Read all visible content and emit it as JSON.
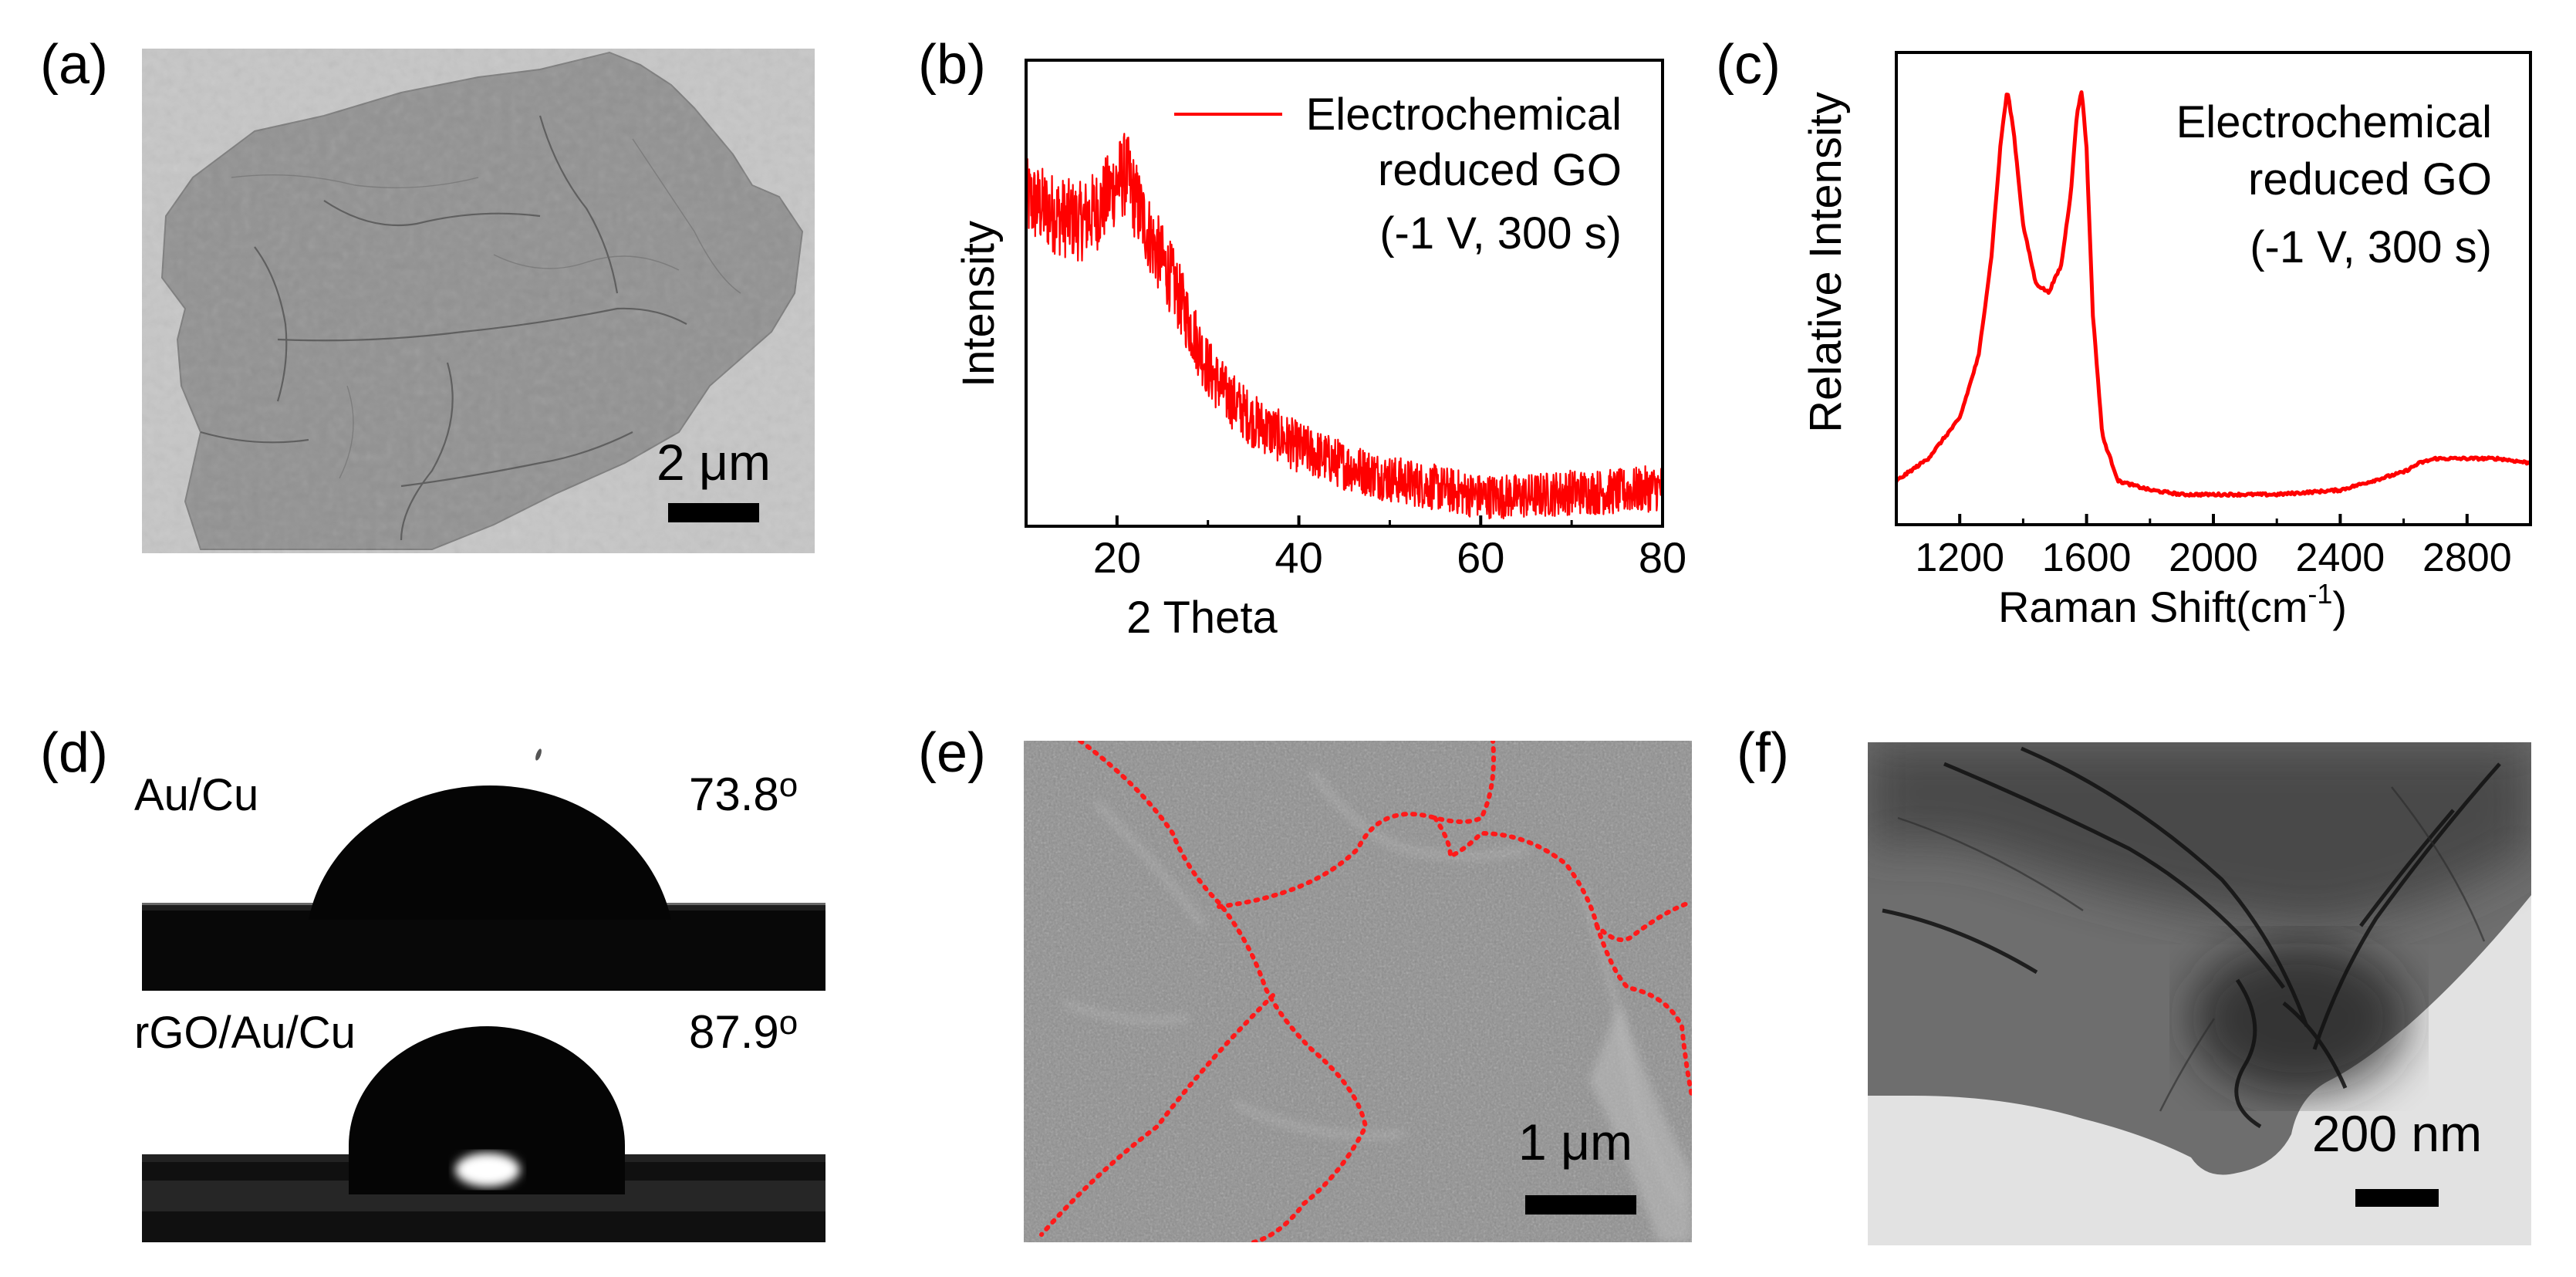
{
  "panel_labels": {
    "a": "(a)",
    "b": "(b)",
    "c": "(c)",
    "d": "(d)",
    "e": "(e)",
    "f": "(f)"
  },
  "panel_a": {
    "scale_bar": "2 μm"
  },
  "panel_b": {
    "legend_line1": "Electrochemical",
    "legend_line2": "reduced GO",
    "legend_line3": "(-1 V, 300 s)"
  },
  "panel_c": {
    "annot_line1": "Electrochemical",
    "annot_line2": "reduced GO",
    "annot_line3": "(-1 V, 300 s)"
  },
  "panel_d": {
    "top_label": "Au/Cu",
    "top_angle": "73.8",
    "bottom_label": "rGO/Au/Cu",
    "bottom_angle": "87.9",
    "degree_symbol": "o"
  },
  "panel_e": {
    "scale_bar": "1 μm"
  },
  "panel_f": {
    "scale_bar": "200 nm"
  },
  "colors": {
    "data": "#ff0000",
    "axis": "#000000"
  },
  "chart_data": [
    {
      "type": "line",
      "id": "b",
      "title": "",
      "xlabel": "2 Theta",
      "ylabel": "Intensity",
      "xlim": [
        10,
        80
      ],
      "xticks": [
        20,
        40,
        60,
        80
      ],
      "yticks_shown": false,
      "series": [
        {
          "name": "Electrochemical reduced GO (-1 V, 300 s)",
          "x": [
            10,
            12,
            14,
            16,
            18,
            20,
            21,
            22,
            24,
            26,
            28,
            30,
            32,
            35,
            40,
            45,
            50,
            55,
            60,
            65,
            70,
            75,
            80
          ],
          "values": [
            0.72,
            0.7,
            0.68,
            0.67,
            0.7,
            0.76,
            0.78,
            0.72,
            0.62,
            0.54,
            0.44,
            0.34,
            0.28,
            0.22,
            0.16,
            0.12,
            0.09,
            0.07,
            0.05,
            0.05,
            0.06,
            0.06,
            0.07
          ],
          "noise": 0.08
        }
      ]
    },
    {
      "type": "line",
      "id": "c",
      "title": "",
      "xlabel": "Raman Shift(cm",
      "xlabel_sup": "-1",
      "xlabel_end": ")",
      "ylabel": "Relative Intensity",
      "xlim": [
        1000,
        3000
      ],
      "xticks": [
        1200,
        1600,
        2000,
        2400,
        2800
      ],
      "yticks_shown": false,
      "series": [
        {
          "name": "Electrochemical reduced GO (-1 V, 300 s)",
          "x": [
            1000,
            1100,
            1200,
            1260,
            1300,
            1330,
            1350,
            1370,
            1400,
            1440,
            1480,
            1520,
            1550,
            1570,
            1585,
            1600,
            1620,
            1650,
            1700,
            1800,
            1900,
            2000,
            2200,
            2400,
            2500,
            2600,
            2650,
            2700,
            2800,
            2900,
            3000
          ],
          "values": [
            0.08,
            0.13,
            0.22,
            0.36,
            0.58,
            0.84,
            0.95,
            0.86,
            0.65,
            0.52,
            0.5,
            0.56,
            0.72,
            0.9,
            0.95,
            0.82,
            0.45,
            0.18,
            0.08,
            0.06,
            0.05,
            0.05,
            0.05,
            0.06,
            0.08,
            0.1,
            0.12,
            0.13,
            0.13,
            0.13,
            0.12
          ]
        }
      ]
    }
  ]
}
